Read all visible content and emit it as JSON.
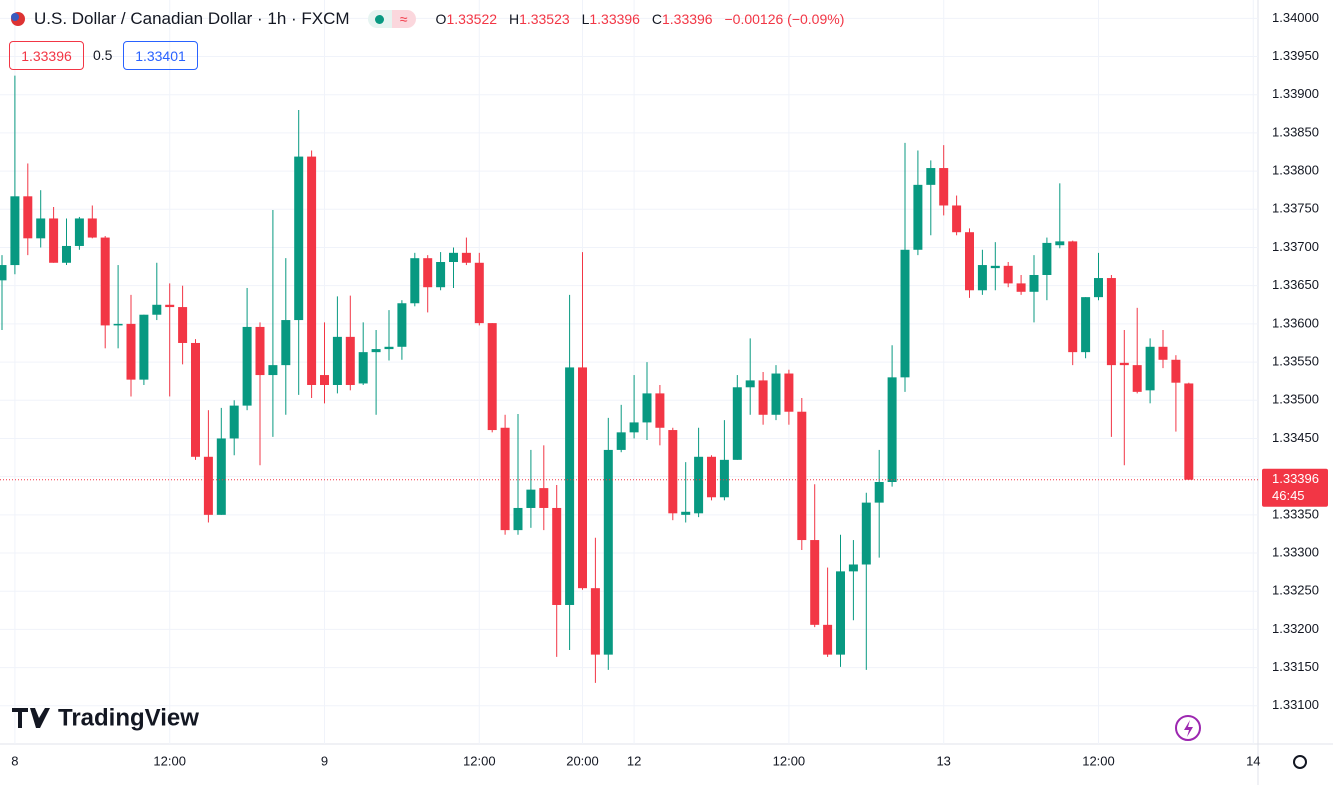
{
  "chart_data": {
    "type": "candlestick",
    "title": "U.S. Dollar / Canadian Dollar · 1h · FXCM",
    "ohlc_labels": [
      "O",
      "H",
      "L",
      "C"
    ],
    "change": "−0.00126 (−0.09%)",
    "spread": 0.5,
    "ask": 1.33401,
    "countdown": "46:45",
    "watermark": "TradingView",
    "up_color": "#089981",
    "down_color": "#f23645",
    "grid": true,
    "categories": [
      null,
      "8",
      null,
      null,
      null,
      null,
      null,
      null,
      null,
      null,
      null,
      null,
      null,
      "12:00",
      null,
      null,
      null,
      null,
      null,
      null,
      null,
      null,
      null,
      null,
      null,
      "9",
      null,
      null,
      null,
      null,
      null,
      null,
      null,
      null,
      null,
      null,
      null,
      "12:00",
      null,
      null,
      null,
      null,
      null,
      null,
      null,
      "20:00",
      null,
      null,
      null,
      "12",
      null,
      null,
      null,
      null,
      null,
      null,
      null,
      null,
      null,
      null,
      null,
      "12:00",
      null,
      null,
      null,
      null,
      null,
      null,
      null,
      null,
      null,
      null,
      null,
      "13",
      null,
      null,
      null,
      null,
      null,
      null,
      null,
      null,
      null,
      null,
      null,
      "12:00",
      null,
      null,
      null,
      null,
      null,
      null,
      null,
      null,
      null,
      null,
      null,
      "14"
    ],
    "open": [
      1.33657,
      1.33677,
      1.33767,
      1.33712,
      1.33738,
      1.3368,
      1.33702,
      1.33738,
      1.33713,
      1.33598,
      1.336,
      1.33527,
      1.33612,
      1.33625,
      1.33622,
      1.33575,
      1.33426,
      1.3335,
      1.3345,
      1.33493,
      1.33596,
      1.33533,
      1.33546,
      1.33605,
      1.33819,
      1.33533,
      1.3352,
      1.33583,
      1.33522,
      1.33563,
      1.33567,
      1.3357,
      1.33627,
      1.33686,
      1.33648,
      1.33681,
      1.33693,
      1.3368,
      1.33601,
      1.33464,
      1.3333,
      1.33359,
      1.33385,
      1.33359,
      1.33232,
      1.33543,
      1.33254,
      1.33167,
      1.33435,
      1.33458,
      1.33471,
      1.33509,
      1.33461,
      1.3335,
      1.33352,
      1.33426,
      1.33373,
      1.33422,
      1.33517,
      1.33526,
      1.33481,
      1.33535,
      1.33485,
      1.33317,
      1.33206,
      1.33167,
      1.33276,
      1.33285,
      1.33366,
      1.33393,
      1.3353,
      1.33697,
      1.33782,
      1.33804,
      1.33755,
      1.3372,
      1.33644,
      1.33673,
      1.33676,
      1.33653,
      1.33642,
      1.33664,
      1.33703,
      1.33708,
      1.33563,
      1.33635,
      1.3366,
      1.33549,
      1.33546,
      1.33513,
      1.3357,
      1.33553,
      1.33522,
      null,
      null,
      null,
      null,
      null
    ],
    "high": [
      1.3369,
      1.33925,
      1.3381,
      1.33775,
      1.33753,
      1.33738,
      1.3374,
      1.33755,
      1.33715,
      1.33677,
      1.33638,
      1.33612,
      1.3368,
      1.33653,
      1.3365,
      1.3358,
      1.33487,
      1.3349,
      1.335,
      1.33647,
      1.33602,
      1.33749,
      1.33686,
      1.3388,
      1.33827,
      1.33602,
      1.33636,
      1.33637,
      1.33602,
      1.33592,
      1.33618,
      1.33631,
      1.33693,
      1.3369,
      1.33694,
      1.337,
      1.33713,
      1.33693,
      1.33601,
      1.33481,
      1.33482,
      1.33435,
      1.33441,
      1.33389,
      1.33638,
      1.33694,
      1.3332,
      1.33477,
      1.33494,
      1.33533,
      1.3355,
      1.3352,
      1.33464,
      1.33419,
      1.33464,
      1.33428,
      1.33474,
      1.33533,
      1.33581,
      1.33537,
      1.33546,
      1.3354,
      1.33503,
      1.3339,
      1.33281,
      1.33324,
      1.33317,
      1.33379,
      1.33435,
      1.33572,
      1.33837,
      1.33827,
      1.33814,
      1.33834,
      1.33768,
      1.33725,
      1.33697,
      1.33707,
      1.33681,
      1.33664,
      1.3369,
      1.33713,
      1.33784,
      1.33709,
      1.33635,
      1.33693,
      1.33664,
      1.33592,
      1.33621,
      1.33581,
      1.33592,
      1.33559,
      1.33523,
      null,
      null,
      null,
      null,
      null
    ],
    "low": [
      1.33592,
      1.33665,
      1.3369,
      1.337,
      1.3368,
      1.33677,
      1.33697,
      1.33712,
      1.33568,
      1.33568,
      1.33505,
      1.3352,
      1.33605,
      1.33505,
      1.33547,
      1.33422,
      1.3334,
      1.3335,
      1.33428,
      1.33487,
      1.33415,
      1.33452,
      1.33481,
      1.33507,
      1.33503,
      1.33496,
      1.33509,
      1.33513,
      1.3352,
      1.33481,
      1.33552,
      1.33553,
      1.33623,
      1.33615,
      1.33644,
      1.33647,
      1.33677,
      1.33598,
      1.33458,
      1.33324,
      1.33324,
      1.33333,
      1.3333,
      1.33164,
      1.33173,
      1.33252,
      1.3313,
      1.33147,
      1.33432,
      1.3345,
      1.33448,
      1.33441,
      1.33343,
      1.3334,
      1.33347,
      1.33369,
      1.33369,
      1.33422,
      1.33481,
      1.33468,
      1.33474,
      1.33468,
      1.33304,
      1.33203,
      1.33164,
      1.33151,
      1.33212,
      1.33147,
      1.33294,
      1.33387,
      1.33511,
      1.3369,
      1.33716,
      1.33742,
      1.33716,
      1.33634,
      1.33638,
      1.33644,
      1.33648,
      1.33638,
      1.33602,
      1.33631,
      1.33699,
      1.33546,
      1.33555,
      1.33631,
      1.33452,
      1.33415,
      1.33509,
      1.33496,
      1.33542,
      1.33459,
      1.33396,
      null,
      null,
      null,
      null,
      null
    ],
    "close": [
      1.33677,
      1.33767,
      1.33712,
      1.33738,
      1.3368,
      1.33702,
      1.33738,
      1.33713,
      1.33598,
      1.336,
      1.33527,
      1.33612,
      1.33625,
      1.33622,
      1.33575,
      1.33426,
      1.3335,
      1.3345,
      1.33493,
      1.33596,
      1.33533,
      1.33546,
      1.33605,
      1.33819,
      1.3352,
      1.3352,
      1.33583,
      1.3352,
      1.33563,
      1.33567,
      1.3357,
      1.33627,
      1.33686,
      1.33648,
      1.33681,
      1.33693,
      1.3368,
      1.33601,
      1.33461,
      1.3333,
      1.33359,
      1.33383,
      1.33359,
      1.33232,
      1.33543,
      1.33254,
      1.33167,
      1.33435,
      1.33458,
      1.33471,
      1.33509,
      1.33464,
      1.33352,
      1.33354,
      1.33426,
      1.33373,
      1.33422,
      1.33517,
      1.33526,
      1.33481,
      1.33535,
      1.33485,
      1.33317,
      1.33206,
      1.33167,
      1.33276,
      1.33285,
      1.33366,
      1.33393,
      1.3353,
      1.33697,
      1.33782,
      1.33804,
      1.33755,
      1.3372,
      1.33644,
      1.33677,
      1.33676,
      1.33653,
      1.33642,
      1.33664,
      1.33706,
      1.33708,
      1.33563,
      1.33635,
      1.3366,
      1.33546,
      1.33546,
      1.33511,
      1.3357,
      1.33553,
      1.33523,
      1.33396,
      null,
      null,
      null,
      null,
      null
    ],
    "ylim": [
      1.3305,
      1.34024
    ],
    "yticks": [
      {
        "value": 1.331,
        "label": "1.33100"
      },
      {
        "value": 1.3315,
        "label": "1.33150"
      },
      {
        "value": 1.332,
        "label": "1.33200"
      },
      {
        "value": 1.3325,
        "label": "1.33250"
      },
      {
        "value": 1.333,
        "label": "1.33300"
      },
      {
        "value": 1.3335,
        "label": "1.33350"
      },
      {
        "value": 1.334,
        "label": "1.33400"
      },
      {
        "value": 1.3345,
        "label": "1.33450"
      },
      {
        "value": 1.335,
        "label": "1.33500"
      },
      {
        "value": 1.3355,
        "label": "1.33550"
      },
      {
        "value": 1.336,
        "label": "1.33600"
      },
      {
        "value": 1.3365,
        "label": "1.33650"
      },
      {
        "value": 1.337,
        "label": "1.33700"
      },
      {
        "value": 1.3375,
        "label": "1.33750"
      },
      {
        "value": 1.338,
        "label": "1.33800"
      },
      {
        "value": 1.3385,
        "label": "1.33850"
      },
      {
        "value": 1.339,
        "label": "1.33900"
      },
      {
        "value": 1.3395,
        "label": "1.33950"
      },
      {
        "value": 1.34,
        "label": "1.34000"
      }
    ]
  }
}
